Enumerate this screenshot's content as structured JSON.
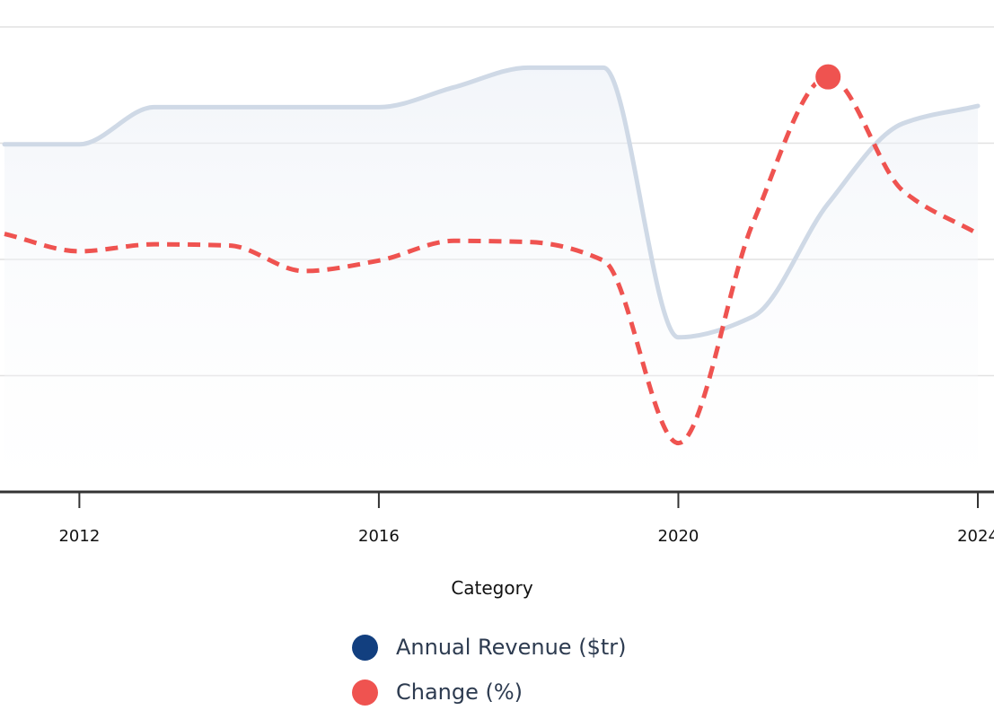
{
  "chart_data": {
    "type": "line",
    "title": "",
    "xlabel": "Category",
    "ylabel": "",
    "x": [
      2011,
      2012,
      2013,
      2014,
      2015,
      2016,
      2017,
      2018,
      2019,
      2020,
      2021,
      2022,
      2023,
      2024
    ],
    "xticks": [
      "2012",
      "2016",
      "2020",
      "2024"
    ],
    "ylim": [
      0,
      4
    ],
    "grid": true,
    "legend_position": "bottom",
    "series": [
      {
        "name": "Annual Revenue ($tr)",
        "color": "#cfd9e6",
        "legend_color": "#123f7f",
        "style": "solid",
        "area": true,
        "values": [
          2.99,
          2.99,
          3.31,
          3.31,
          3.31,
          3.31,
          3.48,
          3.65,
          3.65,
          1.33,
          1.51,
          2.48,
          3.17,
          3.32
        ]
      },
      {
        "name": "Change (%)",
        "color": "#ef5350",
        "legend_color": "#ef5350",
        "style": "dashed",
        "highlight_year": 2022,
        "values": [
          2.22,
          2.07,
          2.13,
          2.12,
          1.9,
          1.99,
          2.16,
          2.15,
          1.99,
          0.42,
          2.32,
          3.57,
          2.59,
          2.22
        ]
      }
    ]
  }
}
